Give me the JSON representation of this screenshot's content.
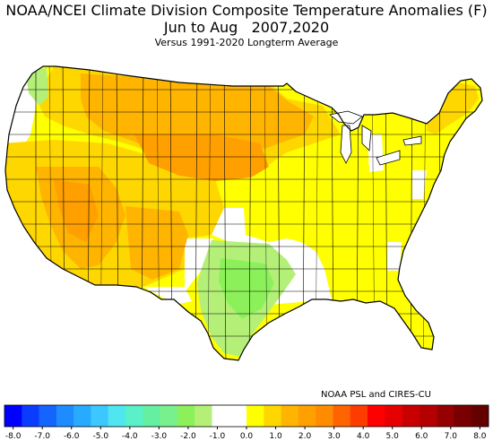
{
  "title_line1": "NOAA/NCEI Climate Division Composite Temperature Anomalies (F)",
  "title_line2": "Jun to Aug   2007,2020",
  "title_line3": "Versus 1991-2020 Longterm Average",
  "credit": "NOAA PSL and CIRES-CU",
  "palette": {
    "background": "#ffffff",
    "border": "#000000",
    "neutral": "#ffffff",
    "yellow_0_5_1": "#ffff00",
    "yellow_1_1_5": "#ffd700",
    "orange_1_5_2": "#ffb400",
    "orange_2_2_5": "#ffa000",
    "green_neg_1": "#b4f078",
    "green_neg_1_5": "#8cf05a"
  },
  "colorbar": {
    "ticks": [
      "-8.0",
      "-7.0",
      "-6.0",
      "-5.0",
      "-4.0",
      "-3.0",
      "-2.0",
      "-1.0",
      "0.0",
      "1.0",
      "2.0",
      "3.0",
      "4.0",
      "5.0",
      "6.0",
      "7.0",
      "8.0"
    ],
    "colors": [
      "#0000ff",
      "#0a3cff",
      "#1464ff",
      "#1e8cff",
      "#28aaff",
      "#3cc8ff",
      "#50e6f0",
      "#5af0c8",
      "#64f0a0",
      "#78f08c",
      "#8cf05a",
      "#b4f078",
      "#ffffff",
      "#ffffff",
      "#ffff00",
      "#ffd700",
      "#ffb400",
      "#ffa000",
      "#ff8c00",
      "#ff6400",
      "#ff3c00",
      "#ff0000",
      "#e60000",
      "#c80000",
      "#b40000",
      "#960000",
      "#780000",
      "#640000"
    ]
  }
}
